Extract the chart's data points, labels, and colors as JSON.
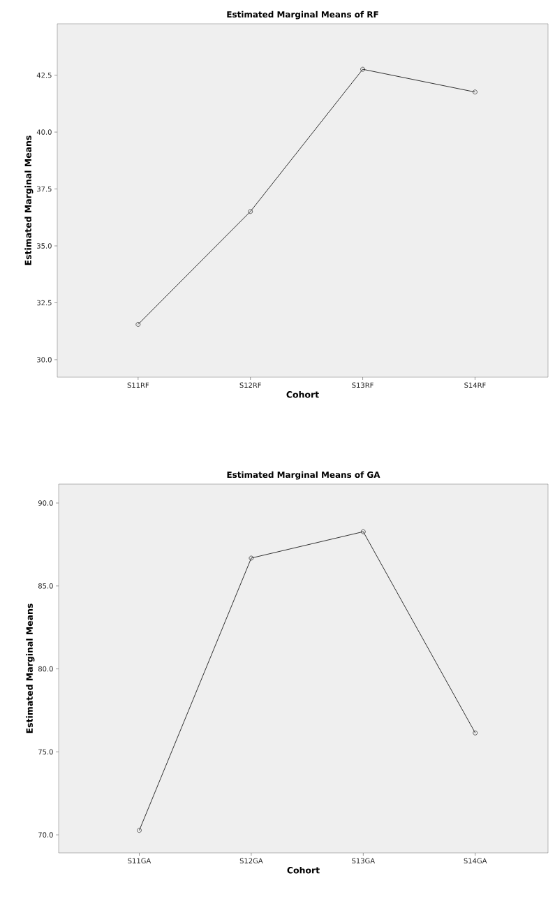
{
  "chart_data": [
    {
      "type": "line",
      "title": "Estimated Marginal Means of RF",
      "xlabel": "Cohort",
      "ylabel": "Estimated Marginal Means",
      "categories": [
        "S11RF",
        "S12RF",
        "S13RF",
        "S14RF"
      ],
      "values": [
        31.55,
        36.51,
        42.76,
        41.76
      ],
      "color": "#000000",
      "marker": "circle",
      "line_style": "solid",
      "ylim": [
        29.23,
        44.76
      ],
      "yticks": [
        {
          "value": 30,
          "label": "30.0"
        },
        {
          "value": 32.5,
          "label": "32.5"
        },
        {
          "value": 35,
          "label": "35.0"
        },
        {
          "value": 37.5,
          "label": "37.5"
        },
        {
          "value": 40,
          "label": "40.0"
        },
        {
          "value": 42.5,
          "label": "42.5"
        }
      ]
    },
    {
      "type": "line",
      "title": "Estimated Marginal Means of GA",
      "xlabel": "Cohort",
      "ylabel": "Estimated Marginal Means",
      "categories": [
        "S11GA",
        "S12GA",
        "S13GA",
        "S14GA"
      ],
      "values": [
        70.27,
        86.68,
        88.27,
        76.14
      ],
      "color": "#000000",
      "marker": "circle",
      "line_style": "solid",
      "ylim": [
        68.91,
        91.14
      ],
      "yticks": [
        {
          "value": 70,
          "label": "70.0"
        },
        {
          "value": 75,
          "label": "75.0"
        },
        {
          "value": 80,
          "label": "80.0"
        },
        {
          "value": 85,
          "label": "85.0"
        },
        {
          "value": 90,
          "label": "90.0"
        }
      ]
    }
  ]
}
